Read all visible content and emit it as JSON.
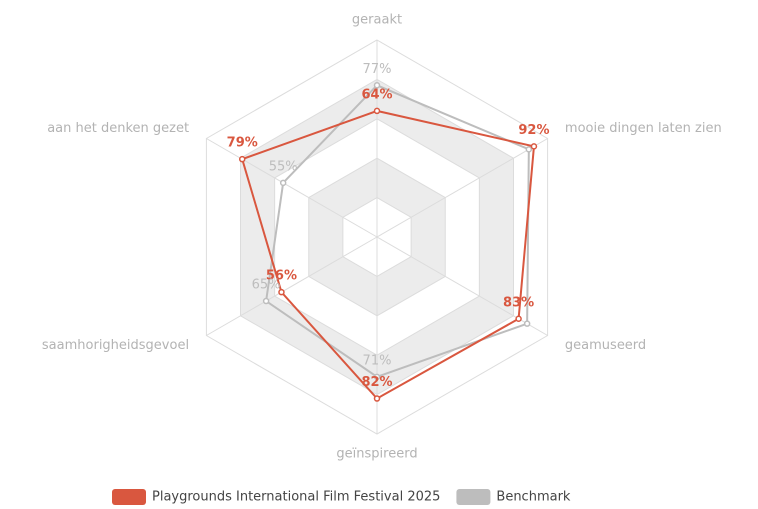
{
  "chart_data": {
    "type": "radar",
    "categories": [
      "geraakt",
      "mooie dingen laten zien",
      "geamuseerd",
      "geïnspireerd",
      "saamhorigheidsgevoel",
      "aan het denken gezet"
    ],
    "series": [
      {
        "name": "Playgrounds International Film Festival 2025",
        "color": "#d9573f",
        "values": [
          64,
          92,
          83,
          82,
          56,
          79
        ],
        "value_labels": [
          "64%",
          "92%",
          "83%",
          "82%",
          "56%",
          "79%"
        ]
      },
      {
        "name": "Benchmark",
        "color": "#bdbdbd",
        "values": [
          77,
          89,
          88,
          71,
          65,
          55
        ],
        "value_labels": [
          "77%",
          null,
          null,
          "71%",
          "65%",
          "55%"
        ]
      }
    ],
    "ylim": [
      0,
      100
    ],
    "yticks": [
      0,
      20,
      40,
      60,
      80,
      100
    ],
    "grid": true,
    "legend": "bottom"
  }
}
